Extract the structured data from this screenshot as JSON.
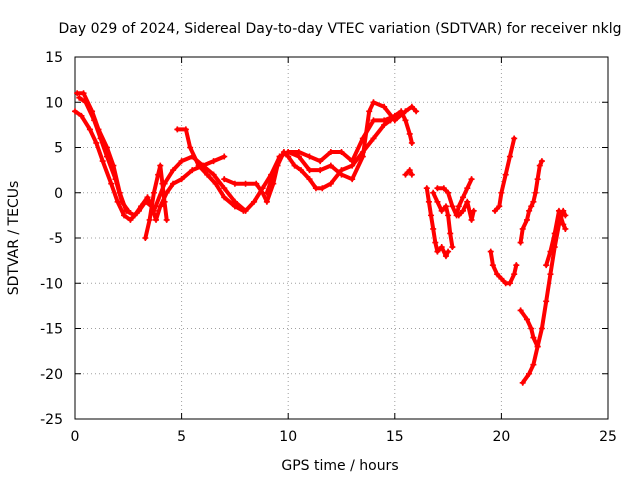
{
  "chart_data": {
    "type": "scatter",
    "title": "Day 029 of 2024, Sidereal Day-to-day VTEC variation (SDTVAR) for receiver nklg",
    "xlabel": "GPS time / hours",
    "ylabel": "SDTVAR / TECUs",
    "xlim": [
      0,
      25
    ],
    "ylim": [
      -25,
      15
    ],
    "xticks": [
      "0",
      "5",
      "10",
      "15",
      "20",
      "25"
    ],
    "yticks": [
      "-25",
      "-20",
      "-15",
      "-10",
      "-5",
      "0",
      "5",
      "10",
      "15"
    ],
    "grid": true,
    "marker": "+",
    "color": "#ff0000",
    "series": [
      {
        "points": [
          [
            0.0,
            9.0
          ],
          [
            0.3,
            8.5
          ],
          [
            0.7,
            7.0
          ],
          [
            1.0,
            5.5
          ],
          [
            1.3,
            3.5
          ],
          [
            1.7,
            1.0
          ],
          [
            2.0,
            -1.0
          ],
          [
            2.3,
            -2.5
          ],
          [
            2.6,
            -3.0
          ],
          [
            3.0,
            -2.0
          ],
          [
            3.3,
            -1.0
          ],
          [
            3.6,
            -1.5
          ],
          [
            3.8,
            -3.0
          ],
          [
            4.0,
            -1.5
          ],
          [
            4.3,
            0.0
          ],
          [
            4.6,
            1.0
          ],
          [
            5.0,
            1.5
          ],
          [
            5.5,
            2.5
          ],
          [
            6.0,
            3.0
          ],
          [
            6.5,
            2.0
          ],
          [
            7.0,
            0.5
          ],
          [
            7.5,
            -1.0
          ],
          [
            8.0,
            -2.0
          ],
          [
            8.4,
            -1.0
          ],
          [
            8.8,
            0.5
          ],
          [
            9.2,
            2.0
          ],
          [
            9.6,
            4.0
          ],
          [
            10.0,
            4.5
          ],
          [
            10.5,
            4.5
          ],
          [
            11.0,
            4.0
          ],
          [
            11.5,
            3.5
          ],
          [
            12.0,
            4.5
          ],
          [
            12.5,
            4.5
          ],
          [
            13.0,
            3.5
          ],
          [
            13.5,
            6.0
          ],
          [
            14.0,
            8.0
          ],
          [
            14.5,
            8.0
          ],
          [
            15.0,
            8.5
          ],
          [
            15.3,
            9.0
          ],
          [
            15.5,
            8.0
          ],
          [
            15.7,
            6.5
          ],
          [
            15.8,
            5.5
          ]
        ]
      },
      {
        "points": [
          [
            0.1,
            11.0
          ],
          [
            0.4,
            11.0
          ],
          [
            0.8,
            9.0
          ],
          [
            1.1,
            7.0
          ],
          [
            1.5,
            5.0
          ],
          [
            1.8,
            3.0
          ],
          [
            2.1,
            0.0
          ],
          [
            2.4,
            -2.0
          ],
          [
            2.8,
            -2.5
          ],
          [
            3.1,
            -1.5
          ],
          [
            3.4,
            -0.5
          ],
          [
            3.7,
            -2.0
          ],
          [
            4.2,
            1.0
          ],
          [
            4.6,
            2.5
          ],
          [
            5.0,
            3.5
          ],
          [
            5.5,
            4.0
          ],
          [
            6.0,
            3.0
          ],
          [
            6.5,
            3.5
          ],
          [
            7.0,
            4.0
          ]
        ]
      },
      {
        "points": [
          [
            0.2,
            10.5
          ],
          [
            0.5,
            10.0
          ],
          [
            0.9,
            8.0
          ],
          [
            1.2,
            6.0
          ],
          [
            1.5,
            4.0
          ],
          [
            1.9,
            1.5
          ],
          [
            2.2,
            -1.0
          ],
          [
            2.5,
            -2.0
          ]
        ]
      },
      {
        "points": [
          [
            3.3,
            -5.0
          ],
          [
            3.5,
            -3.0
          ],
          [
            3.7,
            0.0
          ],
          [
            3.9,
            2.0
          ],
          [
            4.0,
            3.0
          ],
          [
            4.1,
            1.0
          ],
          [
            4.2,
            -1.0
          ],
          [
            4.3,
            -3.0
          ]
        ]
      },
      {
        "points": [
          [
            4.8,
            7.0
          ],
          [
            5.2,
            7.0
          ],
          [
            5.4,
            5.0
          ],
          [
            5.8,
            3.0
          ],
          [
            6.2,
            2.0
          ],
          [
            6.6,
            1.0
          ],
          [
            7.0,
            -0.5
          ],
          [
            7.5,
            -1.5
          ],
          [
            7.9,
            -2.0
          ]
        ]
      },
      {
        "points": [
          [
            7.0,
            1.5
          ],
          [
            7.5,
            1.0
          ],
          [
            8.0,
            1.0
          ],
          [
            8.5,
            1.0
          ],
          [
            8.8,
            0.0
          ],
          [
            9.0,
            -1.0
          ],
          [
            9.3,
            1.0
          ],
          [
            9.5,
            3.0
          ],
          [
            9.8,
            4.5
          ],
          [
            10.0,
            4.0
          ],
          [
            10.3,
            3.0
          ],
          [
            10.6,
            2.5
          ],
          [
            11.0,
            1.5
          ],
          [
            11.3,
            0.5
          ],
          [
            11.6,
            0.5
          ],
          [
            12.0,
            1.0
          ],
          [
            12.5,
            2.5
          ],
          [
            13.0,
            3.0
          ],
          [
            13.5,
            4.5
          ],
          [
            14.0,
            6.0
          ],
          [
            14.5,
            7.5
          ],
          [
            14.8,
            8.0
          ]
        ]
      },
      {
        "points": [
          [
            9.0,
            0.0
          ],
          [
            9.3,
            2.0
          ],
          [
            9.6,
            4.0
          ],
          [
            10.0,
            4.5
          ],
          [
            10.5,
            4.0
          ],
          [
            11.0,
            2.5
          ],
          [
            11.5,
            2.5
          ],
          [
            12.0,
            3.0
          ],
          [
            12.5,
            2.0
          ],
          [
            13.0,
            1.5
          ],
          [
            13.5,
            4.0
          ],
          [
            13.8,
            9.0
          ],
          [
            14.0,
            10.0
          ],
          [
            14.5,
            9.5
          ],
          [
            15.0,
            8.0
          ],
          [
            15.5,
            9.0
          ],
          [
            15.8,
            9.5
          ],
          [
            16.0,
            9.0
          ]
        ]
      },
      {
        "points": [
          [
            15.5,
            2.0
          ],
          [
            15.7,
            2.5
          ],
          [
            15.8,
            2.0
          ]
        ]
      },
      {
        "points": [
          [
            16.5,
            0.5
          ],
          [
            16.6,
            -1.0
          ],
          [
            16.7,
            -2.5
          ],
          [
            16.8,
            -4.0
          ],
          [
            16.9,
            -5.5
          ],
          [
            17.0,
            -6.5
          ],
          [
            17.2,
            -6.0
          ],
          [
            17.4,
            -7.0
          ],
          [
            17.5,
            -6.5
          ]
        ]
      },
      {
        "points": [
          [
            16.8,
            0.0
          ],
          [
            17.0,
            -1.0
          ],
          [
            17.2,
            -2.0
          ],
          [
            17.4,
            -1.5
          ],
          [
            17.5,
            -2.5
          ],
          [
            17.6,
            -4.5
          ],
          [
            17.7,
            -6.0
          ]
        ]
      },
      {
        "points": [
          [
            17.0,
            0.5
          ],
          [
            17.3,
            0.5
          ],
          [
            17.5,
            0.0
          ],
          [
            17.7,
            -1.5
          ],
          [
            17.9,
            -2.5
          ],
          [
            18.0,
            -1.5
          ],
          [
            18.2,
            -0.5
          ],
          [
            18.4,
            0.5
          ],
          [
            18.6,
            1.5
          ]
        ]
      },
      {
        "points": [
          [
            18.0,
            -2.5
          ],
          [
            18.2,
            -2.0
          ],
          [
            18.4,
            -1.0
          ],
          [
            18.6,
            -3.0
          ],
          [
            18.7,
            -2.0
          ]
        ]
      },
      {
        "points": [
          [
            19.7,
            -2.0
          ],
          [
            19.9,
            -1.5
          ],
          [
            20.0,
            0.0
          ],
          [
            20.2,
            2.0
          ],
          [
            20.4,
            4.0
          ],
          [
            20.6,
            6.0
          ]
        ]
      },
      {
        "points": [
          [
            19.5,
            -6.5
          ],
          [
            19.6,
            -8.0
          ],
          [
            19.8,
            -9.0
          ],
          [
            20.0,
            -9.5
          ],
          [
            20.2,
            -10.0
          ],
          [
            20.4,
            -10.0
          ],
          [
            20.6,
            -9.0
          ],
          [
            20.7,
            -8.0
          ]
        ]
      },
      {
        "points": [
          [
            20.9,
            -5.5
          ],
          [
            21.0,
            -4.0
          ],
          [
            21.2,
            -3.0
          ],
          [
            21.3,
            -2.0
          ],
          [
            21.4,
            -1.5
          ],
          [
            21.5,
            -1.0
          ],
          [
            21.6,
            0.0
          ],
          [
            21.7,
            1.5
          ],
          [
            21.8,
            3.0
          ],
          [
            21.9,
            3.5
          ]
        ]
      },
      {
        "points": [
          [
            20.9,
            -13.0
          ],
          [
            21.2,
            -14.0
          ],
          [
            21.4,
            -15.0
          ],
          [
            21.5,
            -16.0
          ],
          [
            21.7,
            -17.0
          ]
        ]
      },
      {
        "points": [
          [
            21.0,
            -21.0
          ],
          [
            21.3,
            -20.0
          ],
          [
            21.5,
            -19.0
          ],
          [
            21.7,
            -17.0
          ],
          [
            21.9,
            -15.0
          ],
          [
            22.1,
            -12.0
          ],
          [
            22.3,
            -9.0
          ],
          [
            22.5,
            -6.0
          ],
          [
            22.7,
            -3.5
          ],
          [
            22.9,
            -2.0
          ],
          [
            23.0,
            -2.5
          ]
        ]
      },
      {
        "points": [
          [
            22.1,
            -8.0
          ],
          [
            22.3,
            -6.5
          ],
          [
            22.5,
            -4.5
          ],
          [
            22.7,
            -2.0
          ],
          [
            22.9,
            -3.5
          ],
          [
            23.0,
            -4.0
          ]
        ]
      }
    ]
  }
}
